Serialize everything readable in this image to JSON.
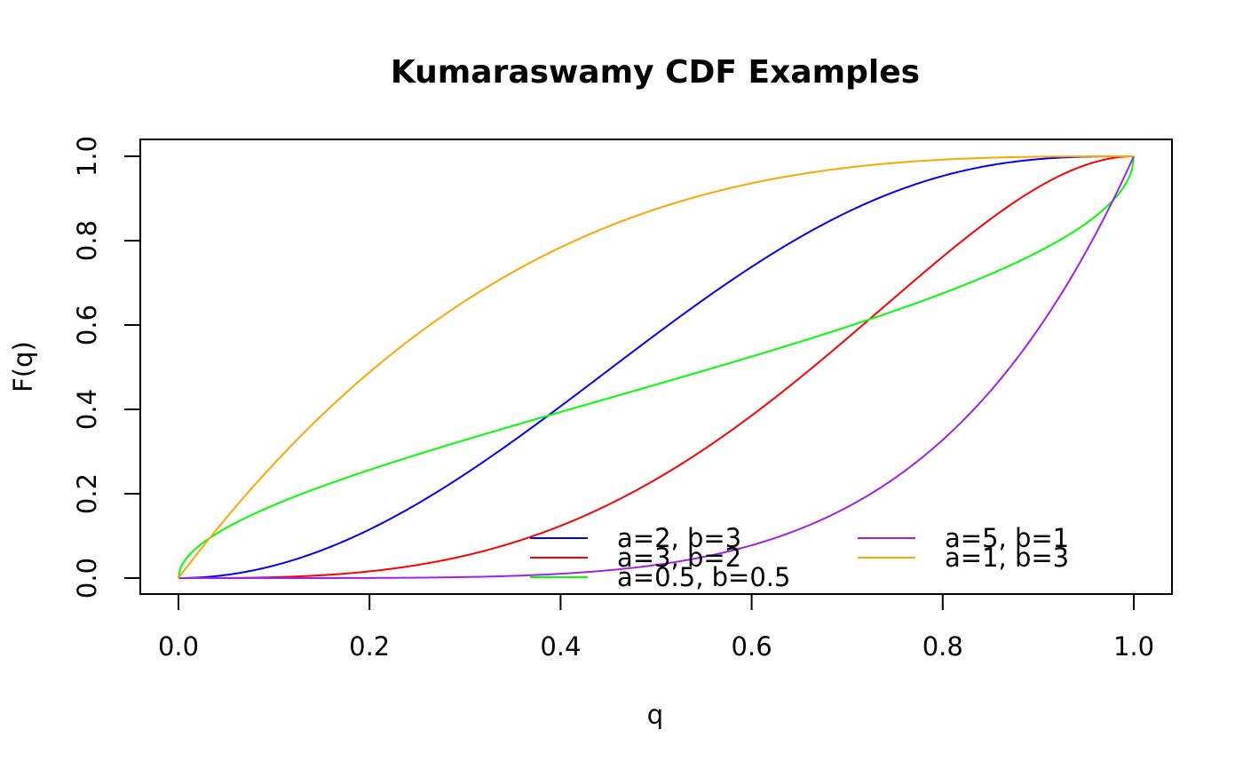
{
  "chart_data": {
    "type": "line",
    "title": "Kumaraswamy CDF Examples",
    "xlabel": "q",
    "ylabel": "F(q)",
    "xlim": [
      0,
      1
    ],
    "ylim": [
      0,
      1
    ],
    "x_ticks": [
      0.0,
      0.2,
      0.4,
      0.6,
      0.8,
      1.0
    ],
    "y_ticks": [
      0.0,
      0.2,
      0.4,
      0.6,
      0.8,
      1.0
    ],
    "x_tick_labels": [
      "0.0",
      "0.2",
      "0.4",
      "0.6",
      "0.8",
      "1.0"
    ],
    "y_tick_labels": [
      "0.0",
      "0.2",
      "0.4",
      "0.6",
      "0.8",
      "1.0"
    ],
    "grid": false,
    "legend_placement": "bottom-right",
    "series": [
      {
        "name": "a=2, b=3",
        "a": 2,
        "b": 3,
        "color": "#0000ff",
        "x": [
          0.0,
          0.05,
          0.1,
          0.15,
          0.2,
          0.25,
          0.3,
          0.35,
          0.4,
          0.45,
          0.5,
          0.55,
          0.6,
          0.65,
          0.7,
          0.75,
          0.8,
          0.85,
          0.9,
          0.95,
          1.0
        ],
        "y": [
          0.0,
          0.0075,
          0.0297,
          0.0655,
          0.1153,
          0.176,
          0.2464,
          0.324,
          0.4073,
          0.492,
          0.5781,
          0.6611,
          0.7379,
          0.8071,
          0.8674,
          0.918,
          0.9533,
          0.9788,
          0.9941,
          0.9994,
          1.0
        ]
      },
      {
        "name": "a=3, b=2",
        "a": 3,
        "b": 2,
        "color": "#ff0000",
        "x": [
          0.0,
          0.05,
          0.1,
          0.15,
          0.2,
          0.25,
          0.3,
          0.35,
          0.4,
          0.45,
          0.5,
          0.55,
          0.6,
          0.65,
          0.7,
          0.75,
          0.8,
          0.85,
          0.9,
          0.95,
          1.0
        ],
        "y": [
          0.0,
          0.0003,
          0.002,
          0.0067,
          0.0159,
          0.031,
          0.0533,
          0.0839,
          0.1239,
          0.1741,
          0.2344,
          0.3045,
          0.3851,
          0.4737,
          0.5678,
          0.6628,
          0.7563,
          0.8444,
          0.9223,
          0.9777,
          1.0
        ]
      },
      {
        "name": "a=0.5, b=0.5",
        "a": 0.5,
        "b": 0.5,
        "color": "#00ff00",
        "x": [
          0.0,
          0.002,
          0.005,
          0.01,
          0.02,
          0.05,
          0.1,
          0.15,
          0.2,
          0.25,
          0.3,
          0.35,
          0.4,
          0.45,
          0.5,
          0.55,
          0.6,
          0.65,
          0.7,
          0.75,
          0.8,
          0.85,
          0.9,
          0.95,
          0.98,
          1.0
        ],
        "y": [
          0.0,
          0.0226,
          0.0357,
          0.0513,
          0.0738,
          0.1187,
          0.1711,
          0.2133,
          0.25,
          0.2929,
          0.3146,
          0.3436,
          0.371,
          0.3979,
          0.4588,
          0.4815,
          0.5254,
          0.5583,
          0.598,
          0.65,
          0.6764,
          0.7186,
          0.78,
          0.8618,
          0.9108,
          0.98
        ]
      },
      {
        "name": "a=5, b=1",
        "a": 5,
        "b": 1,
        "color": "#a020f0",
        "x": [
          0.0,
          0.05,
          0.1,
          0.15,
          0.2,
          0.25,
          0.3,
          0.35,
          0.4,
          0.45,
          0.5,
          0.55,
          0.6,
          0.65,
          0.7,
          0.75,
          0.8,
          0.85,
          0.9,
          0.95,
          1.0
        ],
        "y": [
          0.0,
          3e-07,
          1e-05,
          7.59e-05,
          0.00032,
          0.000977,
          0.00243,
          0.00525,
          0.01024,
          0.01845,
          0.03125,
          0.05033,
          0.07776,
          0.11603,
          0.16807,
          0.2373,
          0.32768,
          0.44371,
          0.59049,
          0.77378,
          1.0
        ]
      },
      {
        "name": "a=1, b=3",
        "a": 1,
        "b": 3,
        "color": "#ffa500",
        "x": [
          0.0,
          0.05,
          0.1,
          0.15,
          0.2,
          0.25,
          0.3,
          0.35,
          0.4,
          0.45,
          0.5,
          0.55,
          0.6,
          0.65,
          0.7,
          0.75,
          0.8,
          0.85,
          0.9,
          0.95,
          1.0
        ],
        "y": [
          0.0,
          0.142625,
          0.271,
          0.385875,
          0.488,
          0.578125,
          0.657,
          0.725375,
          0.784,
          0.833625,
          0.875,
          0.908875,
          0.936,
          0.957125,
          0.973,
          0.984375,
          0.992,
          0.996625,
          0.999,
          0.999875,
          1.0
        ]
      }
    ]
  }
}
